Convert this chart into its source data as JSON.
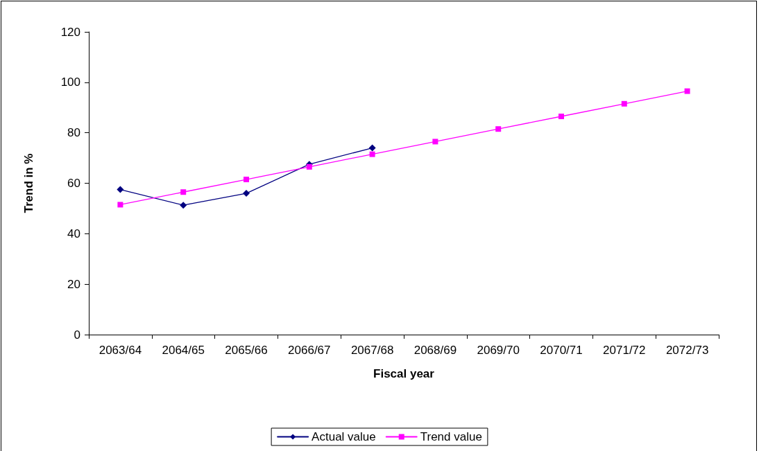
{
  "chart_data": {
    "type": "line",
    "xlabel": "Fiscal year",
    "ylabel": "Trend in %",
    "categories": [
      "2063/64",
      "2064/65",
      "2065/66",
      "2066/67",
      "2067/68",
      "2068/69",
      "2069/70",
      "2070/71",
      "2071/72",
      "2072/73"
    ],
    "series": [
      {
        "name": "Actual value",
        "color": "#000080",
        "marker": "diamond",
        "values": [
          57.5,
          51.3,
          56,
          67.5,
          74,
          null,
          null,
          null,
          null,
          null
        ]
      },
      {
        "name": "Trend value",
        "color": "#ff00ff",
        "marker": "square",
        "values": [
          51.5,
          56.5,
          61.5,
          66.5,
          71.5,
          76.5,
          81.5,
          86.5,
          91.5,
          96.5
        ]
      }
    ],
    "ylim": [
      0,
      120
    ],
    "yticks": [
      0,
      20,
      40,
      60,
      80,
      100,
      120
    ],
    "grid": false,
    "legend": "bottom",
    "line_style": "solid"
  }
}
